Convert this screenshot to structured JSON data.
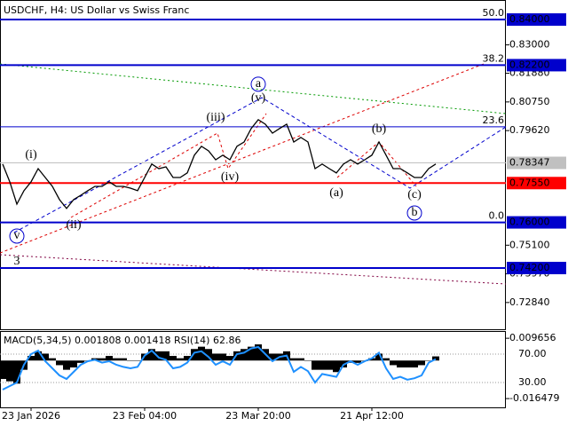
{
  "chart_data": [
    {
      "type": "line",
      "title": "USDCHF, H4:  US Dollar vs Swiss Franc",
      "color": "#000000",
      "categories": [
        null,
        null,
        null,
        null,
        "23 Jan 2026",
        null,
        null,
        null,
        null,
        null,
        null,
        null,
        null,
        null,
        null,
        null,
        null,
        null,
        null,
        null,
        "23 Feb 04:00",
        null,
        null,
        null,
        null,
        null,
        null,
        null,
        null,
        null,
        null,
        null,
        null,
        null,
        null,
        null,
        "23 Mar 20:00",
        null,
        null,
        null,
        null,
        null,
        null,
        null,
        null,
        null,
        null,
        null,
        null,
        null,
        null,
        null,
        "21 Apr 12:00",
        null,
        null,
        null,
        null,
        null,
        null,
        null,
        null,
        null
      ],
      "values": [
        0.783,
        0.776,
        0.7672,
        0.7725,
        0.776,
        0.7812,
        0.7777,
        0.7742,
        0.769,
        0.7655,
        0.769,
        0.7707,
        0.7725,
        0.7742,
        0.7742,
        0.776,
        0.7742,
        0.7742,
        0.7735,
        0.7725,
        0.7777,
        0.783,
        0.7812,
        0.7819,
        0.7777,
        0.7777,
        0.7795,
        0.7865,
        0.79,
        0.7882,
        0.7847,
        0.7865,
        0.7847,
        0.79,
        0.7917,
        0.797,
        0.8005,
        0.7987,
        0.7952,
        0.797,
        0.7987,
        0.7917,
        0.7935,
        0.7917,
        0.7812,
        0.783,
        0.7812,
        0.7795,
        0.783,
        0.7847,
        0.783,
        0.7847,
        0.7865,
        0.7917,
        0.7865,
        0.7812,
        0.7812,
        0.7795,
        0.7777,
        0.7777,
        0.7812,
        0.783
      ],
      "ylim": [
        0.7175,
        0.8477
      ],
      "yticks": [
        {
          "value": 0.83,
          "label": "0.83000"
        },
        {
          "value": 0.8188,
          "label": "0.81880"
        },
        {
          "value": 0.8075,
          "label": "0.80750"
        },
        {
          "value": 0.7962,
          "label": "0.79620"
        },
        {
          "value": 0.751,
          "label": "0.75100"
        },
        {
          "value": 0.7397,
          "label": "0.73970"
        },
        {
          "value": 0.7284,
          "label": "0.72840"
        }
      ],
      "levels": [
        {
          "value": 0.84,
          "label": "0.84000",
          "fib": "50.0",
          "color": "#0000cc"
        },
        {
          "value": 0.822,
          "label": "0.82200",
          "fib": "38.2",
          "color": "#0000cc"
        },
        {
          "value": 0.7977,
          "fib": "23.6",
          "color": "#0000cc"
        },
        {
          "value": 0.7755,
          "label": "0.77550",
          "color": "#ff0000"
        },
        {
          "value": 0.76,
          "label": "0.76000",
          "fib": "0.0",
          "color": "#0000cc"
        },
        {
          "value": 0.742,
          "label": "0.74200",
          "color": "#0000cc"
        }
      ],
      "last_price": {
        "value": 0.78347,
        "label": "0.78347",
        "color": "#c0c0c0"
      },
      "annotations": [
        {
          "text": "(i)",
          "x": 4,
          "y": 0.7865,
          "color": "#dd0000"
        },
        {
          "text": "(ii)",
          "x": 10,
          "y": 0.7588,
          "color": "#dd0000"
        },
        {
          "text": "(iii)",
          "x": 30,
          "y": 0.8012,
          "color": "#dd0000"
        },
        {
          "text": "(iv)",
          "x": 32,
          "y": 0.7777,
          "color": "#dd0000"
        },
        {
          "text": "(v)",
          "x": 36,
          "y": 0.8089,
          "color": "#dd0000"
        },
        {
          "text": "(a)",
          "x": 47,
          "y": 0.7714,
          "color": "#dd0000"
        },
        {
          "text": "(b)",
          "x": 53,
          "y": 0.7966,
          "color": "#dd0000"
        },
        {
          "text": "(c)",
          "x": 58,
          "y": 0.7707,
          "color": "#dd0000"
        },
        {
          "text": "a",
          "x": 36,
          "y": 0.8145,
          "color": "#0000cc",
          "circled": true
        },
        {
          "text": "b",
          "x": 58,
          "y": 0.7637,
          "color": "#0000cc",
          "circled": true
        },
        {
          "text": "v",
          "x": 2,
          "y": 0.7546,
          "color": "#0000cc",
          "circled": true
        },
        {
          "text": "3",
          "x": 2,
          "y": 0.7445,
          "color": "#dd0000"
        }
      ]
    },
    {
      "type": "bar",
      "title": "MACD(5,34,5) 0.001808 0.001418 RSI(14) 62.86",
      "series": [
        {
          "color": "#000000",
          "values": [
            -0.008,
            -0.009,
            -0.01,
            -0.004,
            0.002,
            0.004,
            0.003,
            0.001,
            -0.002,
            -0.004,
            -0.003,
            -0.001,
            0.0,
            0.001,
            0.001,
            0.002,
            0.001,
            0.001,
            0.0,
            0.0,
            0.003,
            0.005,
            0.004,
            0.004,
            0.002,
            0.001,
            0.002,
            0.005,
            0.006,
            0.005,
            0.003,
            0.003,
            0.002,
            0.004,
            0.005,
            0.006,
            0.007,
            0.005,
            0.003,
            0.003,
            0.004,
            0.001,
            0.001,
            0.0,
            -0.004,
            -0.004,
            -0.004,
            -0.005,
            -0.003,
            -0.001,
            -0.001,
            0.0,
            0.001,
            0.003,
            0.001,
            -0.002,
            -0.003,
            -0.003,
            -0.003,
            -0.002,
            0.0,
            0.0018
          ]
        },
        {
          "color": "#1e90ff",
          "axis": "y2",
          "values": [
            20,
            25,
            30,
            55,
            70,
            75,
            60,
            50,
            40,
            35,
            45,
            55,
            60,
            62,
            58,
            60,
            55,
            52,
            50,
            52,
            68,
            75,
            65,
            62,
            50,
            52,
            58,
            72,
            74,
            66,
            55,
            60,
            55,
            70,
            72,
            78,
            80,
            70,
            60,
            66,
            68,
            45,
            52,
            46,
            30,
            42,
            40,
            38,
            55,
            60,
            55,
            60,
            64,
            72,
            50,
            35,
            38,
            34,
            36,
            40,
            58,
            63
          ]
        }
      ],
      "ylim": [
        -0.0199,
        0.0124
      ],
      "yticks": [
        {
          "value": 0.009656,
          "label": "0.009656"
        },
        {
          "value": -0.016479,
          "label": "-0.016479"
        }
      ],
      "y2lim": [
        -3.75,
        101.25
      ],
      "y2ticks": [
        {
          "value": 70,
          "label": "70.00"
        },
        {
          "value": 30,
          "label": "30.00"
        }
      ]
    }
  ]
}
